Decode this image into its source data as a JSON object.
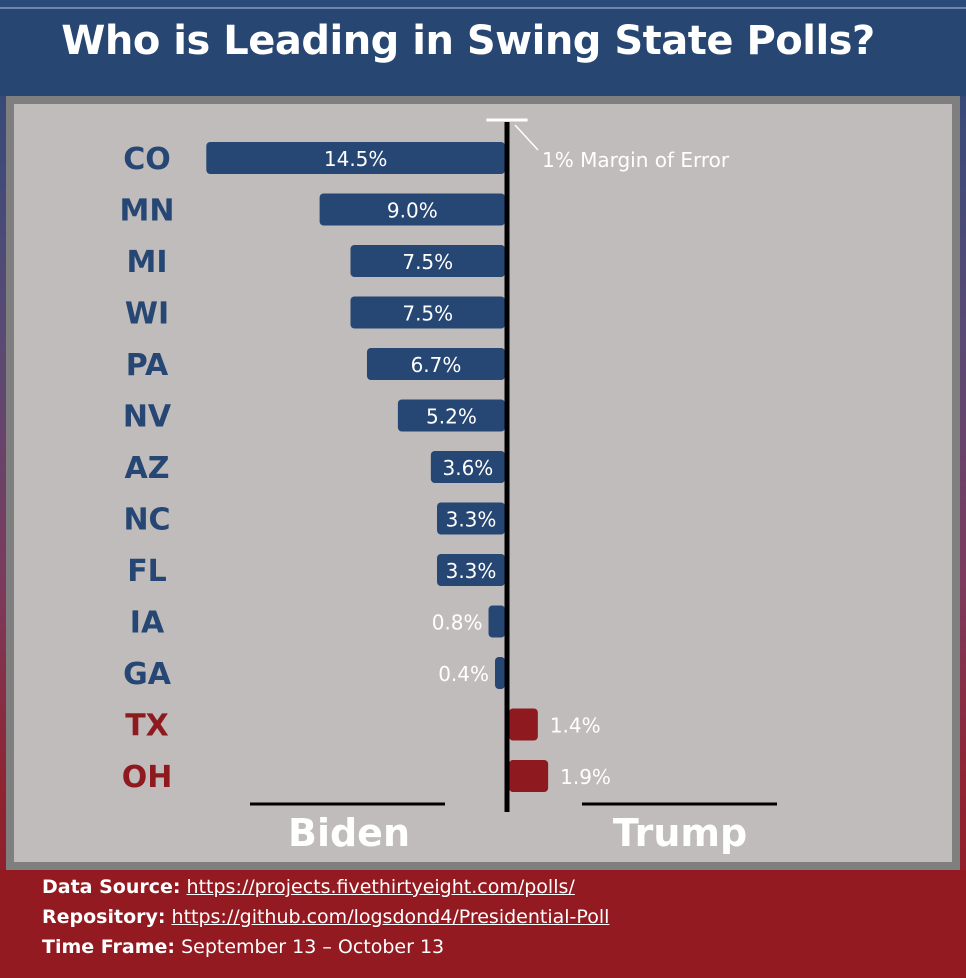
{
  "colors": {
    "biden": "#264673",
    "trump": "#8e1a1f",
    "axis": "#000000",
    "label_text": "#ffffff"
  },
  "chart_data": {
    "type": "bar",
    "orientation": "horizontal diverging",
    "title": "Who is Leading in Swing State Polls?",
    "categories": [
      "CO",
      "MN",
      "MI",
      "WI",
      "PA",
      "NV",
      "AZ",
      "NC",
      "FL",
      "IA",
      "GA",
      "TX",
      "OH"
    ],
    "leader": [
      "Biden",
      "Biden",
      "Biden",
      "Biden",
      "Biden",
      "Biden",
      "Biden",
      "Biden",
      "Biden",
      "Biden",
      "Biden",
      "Trump",
      "Trump"
    ],
    "values": [
      14.5,
      9.0,
      7.5,
      7.5,
      6.7,
      5.2,
      3.6,
      3.3,
      3.3,
      0.8,
      0.4,
      1.4,
      1.9
    ],
    "value_labels": [
      "14.5%",
      "9.0%",
      "7.5%",
      "7.5%",
      "6.7%",
      "5.2%",
      "3.6%",
      "3.3%",
      "3.3%",
      "0.8%",
      "0.4%",
      "1.4%",
      "1.9%"
    ],
    "side_labels": {
      "left": "Biden",
      "right": "Trump"
    },
    "annotation": "1% Margin of Error",
    "margin_of_error": 1
  },
  "footer": {
    "source_label": "Data Source:",
    "source_url": "https://projects.fivethirtyeight.com/polls/",
    "repo_label": "Repository:",
    "repo_url": "https://github.com/logsdond4/Presidential-Poll",
    "timeframe_label": "Time Frame:",
    "timeframe_value": "September 13 – October 13"
  }
}
